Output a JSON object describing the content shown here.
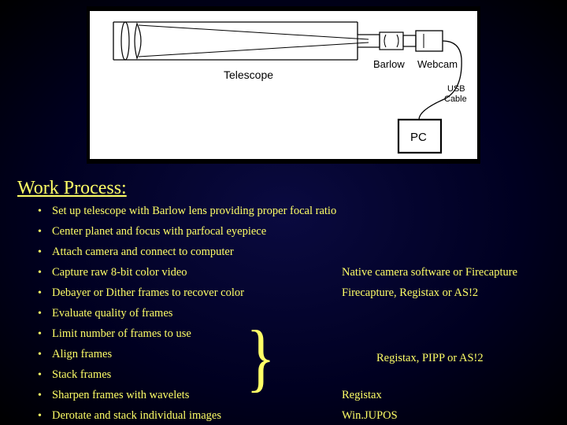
{
  "diagram": {
    "type": "schematic",
    "background": "#ffffff",
    "stroke": "#000000",
    "stroke_width": 1.2,
    "labels": {
      "telescope": "Telescope",
      "barlow": "Barlow",
      "webcam": "Webcam",
      "usb": "USB",
      "cable": "Cable",
      "pc": "PC"
    },
    "label_fontsize": 12,
    "label_color": "#000000"
  },
  "section_title": "Work Process:",
  "title_color": "#ffff66",
  "title_fontsize": 24,
  "text_color": "#ffff66",
  "text_fontsize": 14.5,
  "bullet_char": "•",
  "rows": [
    {
      "left": "Set up telescope with Barlow lens providing proper focal ratio",
      "right": ""
    },
    {
      "left": "Center planet and focus with parfocal eyepiece",
      "right": ""
    },
    {
      "left": "Attach camera and connect to computer",
      "right": ""
    },
    {
      "left": "Capture raw 8-bit color video",
      "right": "Native camera software or Firecapture"
    },
    {
      "left": "Debayer or Dither frames to recover color",
      "right": "Firecapture, Registax or AS!2"
    },
    {
      "left": "Evaluate quality of frames",
      "right": ""
    },
    {
      "left": "Limit number of frames to use",
      "right": ""
    },
    {
      "left": "Align frames",
      "right": ""
    },
    {
      "left": "Stack frames",
      "right": ""
    },
    {
      "left": "Sharpen frames with wavelets",
      "right": "Registax"
    },
    {
      "left": "Derotate and stack individual images",
      "right": "Win.JUPOS"
    }
  ],
  "brace": {
    "glyph": "}",
    "covers_rows": [
      5,
      6,
      7,
      8
    ],
    "label": "Registax, PIPP or AS!2"
  },
  "background_gradient": {
    "inner": "#0a0a40",
    "outer": "#000020"
  }
}
